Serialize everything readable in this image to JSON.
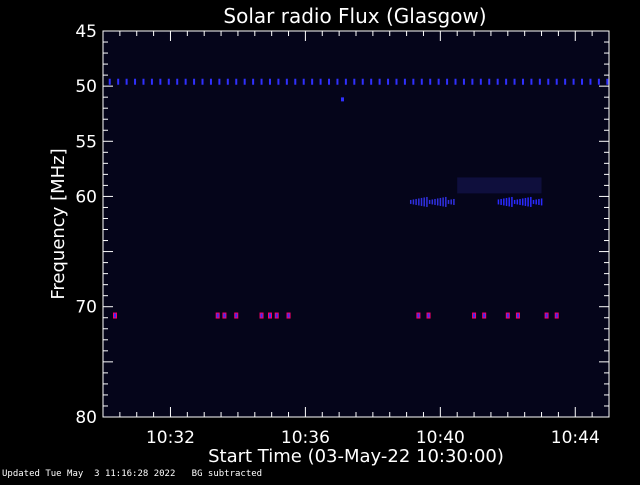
{
  "chart_data": {
    "type": "heatmap",
    "title": "Solar radio Flux (Glasgow)",
    "xlabel": "Start Time (03-May-22 10:30:00)",
    "ylabel": "Frequency [MHz]",
    "xlim_minutes": [
      0,
      15
    ],
    "ylim_mhz": [
      45,
      80
    ],
    "y_ticks": [
      {
        "value": 45,
        "label": "45"
      },
      {
        "value": 50,
        "label": "50"
      },
      {
        "value": 55,
        "label": "55"
      },
      {
        "value": 60,
        "label": "60"
      },
      {
        "value": 70,
        "label": "70"
      },
      {
        "value": 80,
        "label": "80"
      }
    ],
    "x_ticks": [
      {
        "minute": 2,
        "label": "10:32"
      },
      {
        "minute": 6,
        "label": "10:36"
      },
      {
        "minute": 10,
        "label": "10:40"
      },
      {
        "minute": 14,
        "label": "10:44"
      }
    ],
    "background_color": "#05051a",
    "features": [
      {
        "kind": "band",
        "freq_mhz": 49.6,
        "start_min": 0.2,
        "end_min": 15,
        "color": "#3030ff"
      },
      {
        "kind": "dot",
        "freq_mhz": 51.2,
        "minute": 7.1,
        "color": "#3030ff"
      },
      {
        "kind": "patch",
        "freq_mhz": 60.5,
        "start_min": 9.1,
        "end_min": 10.4,
        "color": "#3030e0"
      },
      {
        "kind": "patch",
        "freq_mhz": 60.5,
        "start_min": 11.7,
        "end_min": 13.0,
        "color": "#2a2aff"
      },
      {
        "kind": "faint",
        "freq_mhz": 59.0,
        "start_min": 10.5,
        "end_min": 13.0,
        "color": "#1a1a60"
      }
    ],
    "markers_70": {
      "freq_mhz": 70.8,
      "minutes": [
        0.0,
        3.4,
        3.6,
        3.95,
        4.7,
        4.95,
        5.15,
        5.5,
        9.35,
        9.65,
        11.0,
        11.3,
        12.0,
        12.3,
        13.15,
        13.45
      ],
      "color": "#ff0066"
    }
  },
  "footer": {
    "updated": "Updated Tue May  3 11:16:28 2022",
    "bg_note": "BG subtracted"
  }
}
